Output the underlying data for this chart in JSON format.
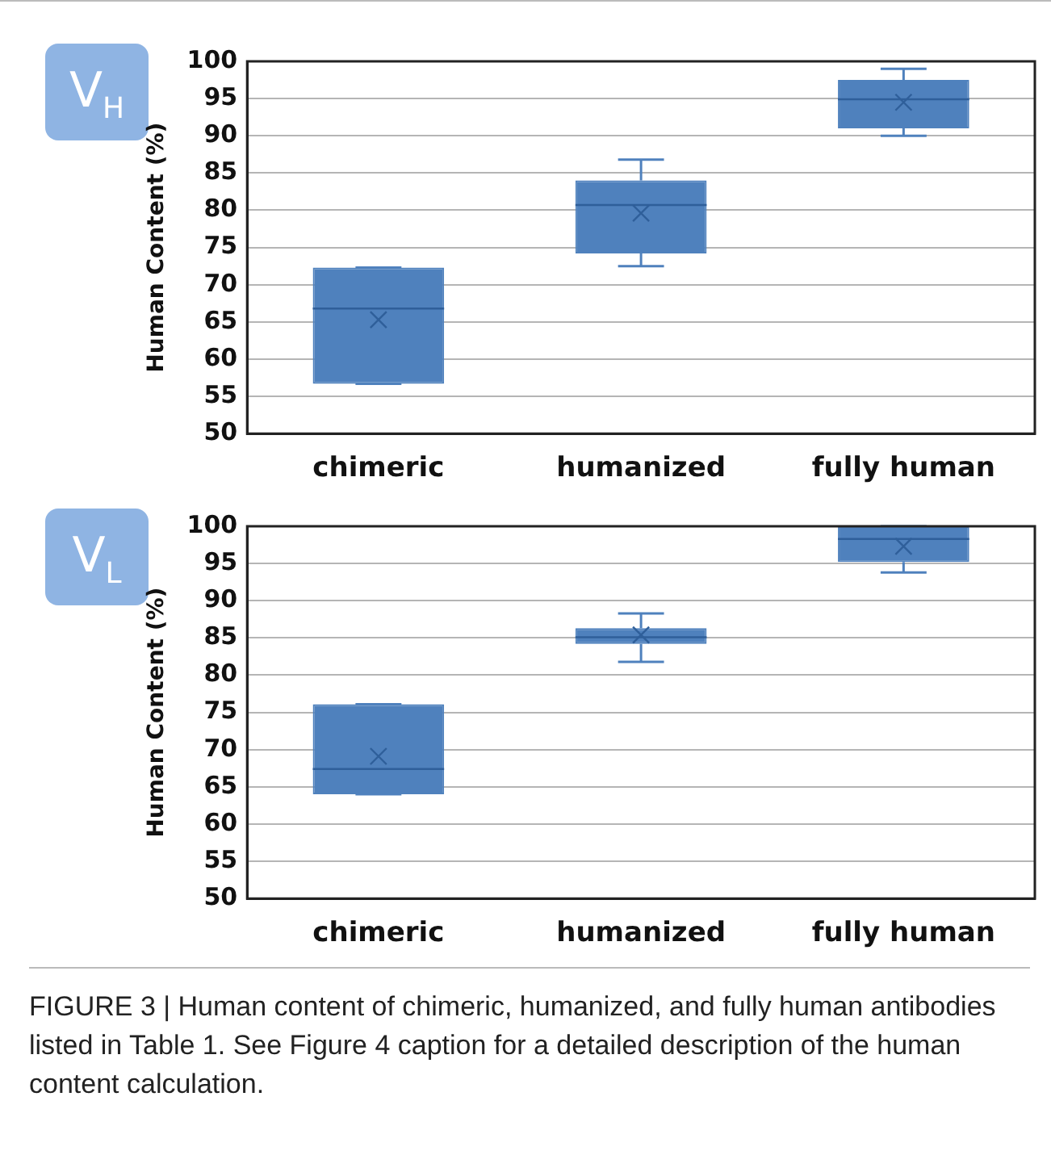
{
  "chart_data": [
    {
      "type": "box",
      "title": "V$_{H}$",
      "ylabel": "Human Content (%)",
      "categories": [
        "chimeric",
        "humanized",
        "fully human"
      ],
      "color": "#4f81bd",
      "grid": "y",
      "ylim": [
        50,
        100
      ],
      "yticks": [
        50,
        55,
        60,
        65,
        70,
        75,
        80,
        85,
        90,
        95,
        100
      ],
      "boxes": [
        {
          "low": 56.7,
          "q1": 56.7,
          "median": 66.8,
          "q3": 72.3,
          "high": 72.3,
          "mean": 65.3
        },
        {
          "low": 72.5,
          "q1": 74.2,
          "median": 80.7,
          "q3": 84,
          "high": 86.8,
          "mean": 79.6
        },
        {
          "low": 90,
          "q1": 91,
          "median": 94.9,
          "q3": 97.5,
          "high": 99,
          "mean": 94.5
        }
      ]
    },
    {
      "type": "box",
      "title": "V$_{L}$",
      "ylabel": "Human Content (%)",
      "categories": [
        "chimeric",
        "humanized",
        "fully human"
      ],
      "color": "#4f81bd",
      "grid": "y",
      "ylim": [
        50,
        100
      ],
      "yticks": [
        50,
        55,
        60,
        65,
        70,
        75,
        80,
        85,
        90,
        95,
        100
      ],
      "boxes": [
        {
          "low": 64,
          "q1": 64,
          "median": 67.4,
          "q3": 76.1,
          "high": 76.1,
          "mean": 69.1
        },
        {
          "low": 81.8,
          "q1": 84.2,
          "median": 85.1,
          "q3": 86.3,
          "high": 88.3,
          "mean": 85.4
        },
        {
          "low": 93.8,
          "q1": 95.2,
          "median": 98.3,
          "q3": 100,
          "high": 100,
          "mean": 97.3
        }
      ],
      "annotations": [
        "FIGURE 3 | Human content of chimeric, humanized, and fully human antibodies listed in Table 1. See Figure 4 caption for a detailed description of the human content calculation."
      ]
    }
  ]
}
